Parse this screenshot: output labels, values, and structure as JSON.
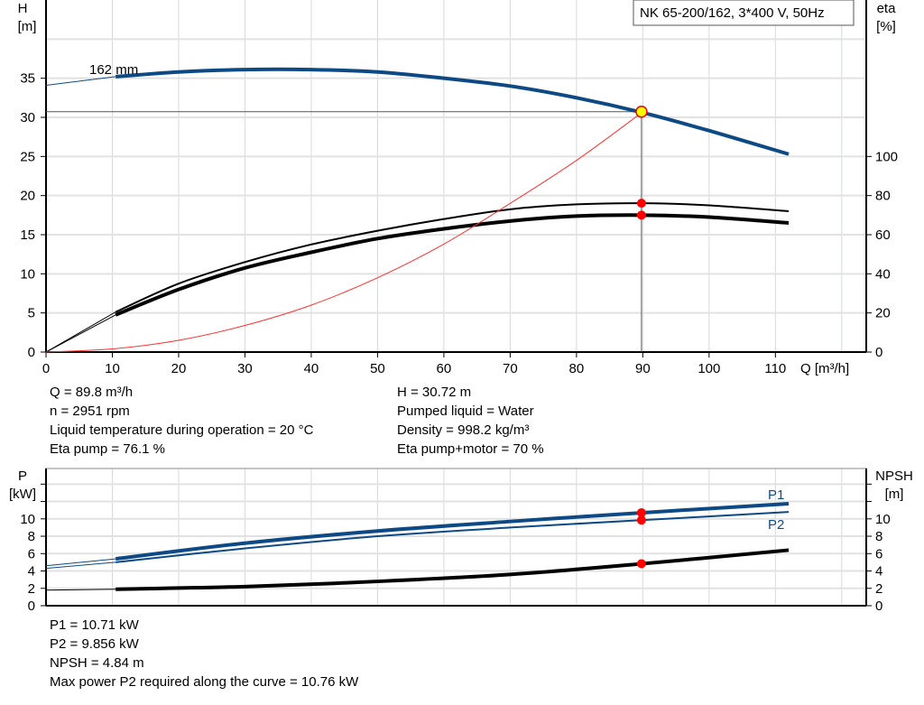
{
  "chart_data": [
    {
      "type": "line",
      "title": "NK 65-200/162, 3*400 V, 50Hz",
      "xlabel": "Q [m³/h]",
      "xlim": [
        0,
        123.7
      ],
      "xticks": [
        0,
        10,
        20,
        30,
        40,
        50,
        60,
        70,
        80,
        90,
        100,
        110
      ],
      "ylabel": "H",
      "ylabel_unit": "[m]",
      "ylim": [
        0,
        45
      ],
      "yticks": [
        0,
        5,
        10,
        15,
        20,
        25,
        30,
        35
      ],
      "y2label": "eta",
      "y2label_unit": "[%]",
      "y2lim": [
        0,
        180
      ],
      "y2ticks": [
        0,
        20,
        40,
        60,
        80,
        100
      ],
      "grid": true,
      "curve_label": "162 mm",
      "series": [
        {
          "axis": "left",
          "color": "#0d4a85",
          "extrapolated": [
            [
              0,
              34.1
            ],
            [
              10.5,
              35.2
            ]
          ],
          "x": [
            10.5,
            20,
            30,
            40,
            50,
            60,
            70,
            80,
            90,
            100,
            112
          ],
          "y": [
            35.2,
            35.8,
            36.1,
            36.1,
            35.8,
            35.0,
            34.0,
            32.5,
            30.6,
            28.3,
            25.3
          ]
        },
        {
          "axis": "right",
          "color": "#000000",
          "extrapolated": [
            [
              0,
              0
            ],
            [
              10.5,
              20.5
            ]
          ],
          "x": [
            10.5,
            20,
            30,
            40,
            50,
            60,
            70,
            80,
            90,
            100,
            112
          ],
          "y": [
            20.5,
            35,
            46,
            55,
            62,
            68,
            73,
            75.5,
            76.1,
            75,
            72
          ]
        },
        {
          "axis": "right",
          "color": "#000000",
          "extrapolated": [
            [
              0,
              0
            ],
            [
              10.5,
              19
            ]
          ],
          "x": [
            10.5,
            20,
            30,
            40,
            50,
            60,
            70,
            80,
            90,
            100,
            112
          ],
          "y": [
            19,
            32,
            43,
            51,
            58,
            63,
            67,
            69.5,
            70,
            69,
            66
          ]
        },
        {
          "axis": "left",
          "color": "#ff3030",
          "x": [
            0,
            10,
            20,
            30,
            40,
            50,
            60,
            70,
            80,
            90
          ],
          "y": [
            0,
            0.4,
            1.5,
            3.4,
            6,
            9.5,
            13.8,
            19,
            24.5,
            30.7
          ]
        }
      ],
      "operating_point": {
        "Q": 89.8,
        "H": 30.72,
        "eta_pump": 76.1,
        "eta_pump_motor": 70
      }
    },
    {
      "type": "line",
      "xlim": [
        0,
        123.7
      ],
      "ylabel": "P",
      "ylabel_unit": "[kW]",
      "ylim": [
        0,
        15.8
      ],
      "yticks": [
        0,
        2,
        4,
        6,
        8,
        10
      ],
      "y2label": "NPSH",
      "y2label_unit": "[m]",
      "y2ticks": [
        0,
        2,
        4,
        6,
        8,
        10
      ],
      "grid": true,
      "series": [
        {
          "name": "P1",
          "color": "#0d4a85",
          "extrapolated": [
            [
              0,
              4.6
            ],
            [
              10.5,
              5.4
            ]
          ],
          "x": [
            10.5,
            30,
            50,
            70,
            90,
            112
          ],
          "y": [
            5.4,
            7.2,
            8.6,
            9.7,
            10.71,
            11.75
          ]
        },
        {
          "name": "P2",
          "color": "#0d4a85",
          "extrapolated": [
            [
              0,
              4.3
            ],
            [
              10.5,
              5.0
            ]
          ],
          "x": [
            10.5,
            30,
            50,
            70,
            90,
            112
          ],
          "y": [
            5.0,
            6.6,
            8.0,
            9.0,
            9.856,
            10.8
          ]
        },
        {
          "color": "#000000",
          "extrapolated": [
            [
              0,
              1.8
            ],
            [
              10.5,
              1.9
            ]
          ],
          "x": [
            10.5,
            30,
            50,
            70,
            90,
            112
          ],
          "y": [
            1.9,
            2.2,
            2.8,
            3.6,
            4.84,
            6.4
          ]
        }
      ],
      "operating_point": {
        "Q": 89.8,
        "P1": 10.71,
        "P2": 9.856,
        "NPSH": 4.84
      }
    }
  ],
  "info_top_left": [
    "Q = 89.8 m³/h",
    "n = 2951 rpm",
    "Liquid temperature during operation = 20 °C",
    "Eta pump = 76.1 %"
  ],
  "info_top_right": [
    "H = 30.72 m",
    "Pumped liquid = Water",
    "Density = 998.2 kg/m³",
    "Eta pump+motor = 70 %"
  ],
  "info_bottom": [
    "P1 = 10.71 kW",
    "P2 = 9.856 kW",
    "NPSH = 4.84 m",
    "Max power P2 required along the curve = 10.76 kW"
  ]
}
